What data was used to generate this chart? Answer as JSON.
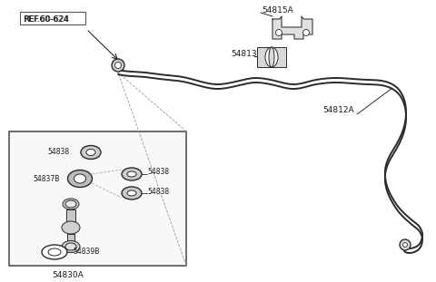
{
  "background_color": "#ffffff",
  "line_color": "#2a2a2a",
  "label_color": "#1a1a1a",
  "figsize": [
    4.8,
    3.11
  ],
  "dpi": 100,
  "labels": {
    "REF_60_624": "REF.60-624",
    "54815A": "54815A",
    "54813": "54813",
    "54812A": "54812A",
    "54838_top": "54838",
    "54837B": "54837B",
    "54838_mid1": "54838",
    "54838_mid2": "54838",
    "54839B": "54839B",
    "54830A": "54830A"
  }
}
